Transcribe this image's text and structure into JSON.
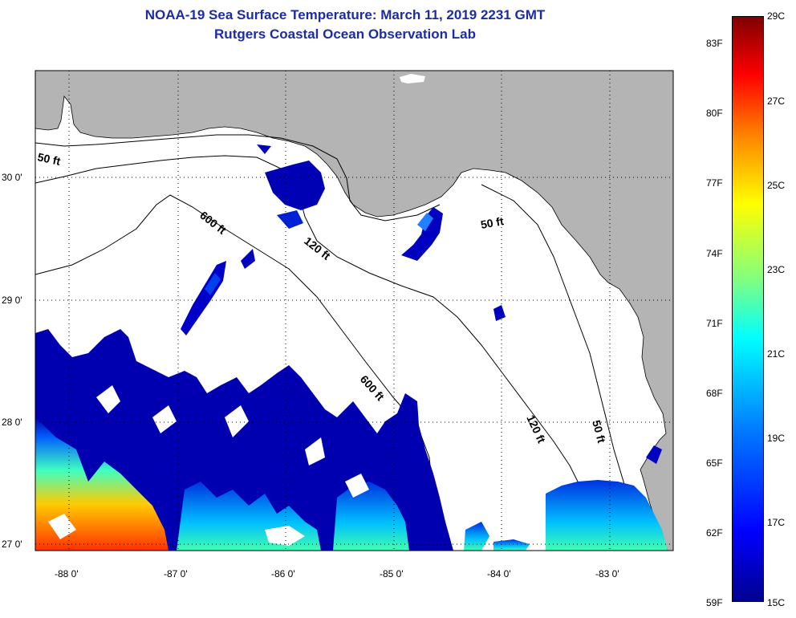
{
  "header": {
    "title": "NOAA-19 Sea Surface Temperature:  March 11, 2019 2231 GMT",
    "subtitle": "Rutgers Coastal Ocean Observation Lab"
  },
  "map": {
    "lon_ticks": [
      "-88 0'",
      "-87 0'",
      "-86 0'",
      "-85 0'",
      "-84 0'",
      "-83 0'"
    ],
    "lat_ticks": [
      "30 0'",
      "29 0'",
      "28 0'",
      "27 0'"
    ],
    "contour_labels": [
      "50 ft",
      "600 ft",
      "120 ft",
      "50 ft",
      "600 ft",
      "120 ft",
      "50 ft"
    ],
    "colors": {
      "land": "#b4b4b4",
      "ocean_nodata": "#ffffff",
      "grid": "#000000"
    }
  },
  "colorbar": {
    "fahrenheit_labels": [
      "83F",
      "80F",
      "77F",
      "74F",
      "71F",
      "68F",
      "65F",
      "62F",
      "59F"
    ],
    "celsius_labels": [
      "29C",
      "27C",
      "25C",
      "23C",
      "21C",
      "19C",
      "17C",
      "15C"
    ],
    "colormap": [
      "#00008f",
      "#0000ff",
      "#0080ff",
      "#00ffff",
      "#80ff80",
      "#ffff00",
      "#ff8000",
      "#ff0000",
      "#800000"
    ]
  }
}
